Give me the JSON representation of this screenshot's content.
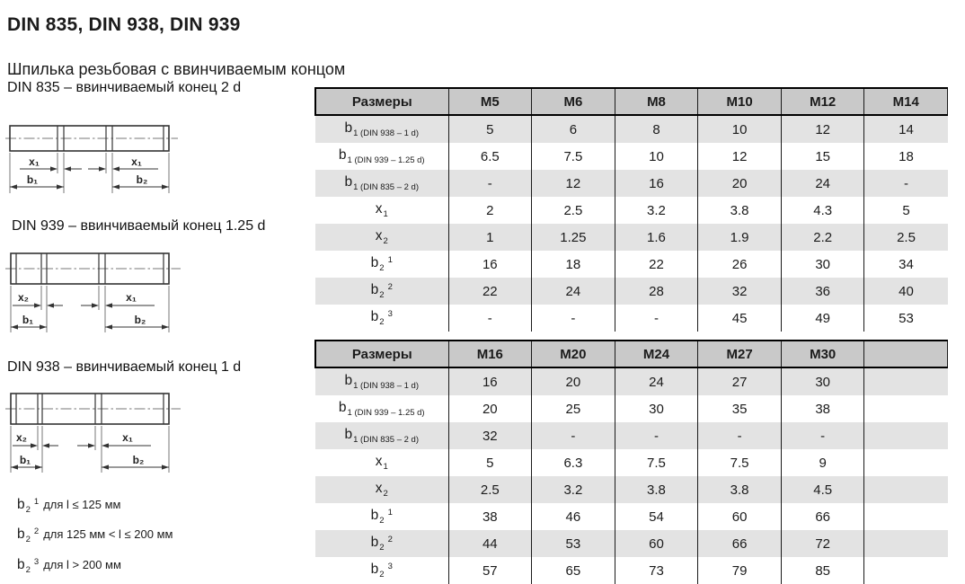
{
  "page": {
    "title": "DIN 835, DIN 938, DIN 939",
    "subtitle": "Шпилька резьбовая с ввинчиваемым концом"
  },
  "diagrams": [
    {
      "caption": "DIN 835 – ввинчиваемый конец 2 d",
      "dim_left": "x₁",
      "dim_right": "x₁",
      "dim_b_left": "b₁",
      "dim_b_right": "b₂"
    },
    {
      "caption": "DIN 939 – ввинчиваемый конец 1.25 d",
      "dim_left": "x₂",
      "dim_right": "x₁",
      "dim_b_left": "b₁",
      "dim_b_right": "b₂"
    },
    {
      "caption": "DIN 938 – ввинчиваемый конец 1 d",
      "dim_left": "x₂",
      "dim_right": "x₁",
      "dim_b_left": "b₁",
      "dim_b_right": "b₂"
    }
  ],
  "footnotes": [
    {
      "base": "b",
      "sub": "2",
      "sup": "1",
      "text": "для l ≤ 125 мм"
    },
    {
      "base": "b",
      "sub": "2",
      "sup": "2",
      "text": "для 125 мм < l ≤ 200 мм"
    },
    {
      "base": "b",
      "sub": "2",
      "sup": "3",
      "text": "для l > 200 мм"
    }
  ],
  "tables": [
    {
      "header_label": "Размеры",
      "columns": [
        "M5",
        "M6",
        "M8",
        "M10",
        "M12",
        "M14"
      ],
      "rows": [
        {
          "label": {
            "base": "b",
            "sub": "1 (DIN 938 – 1 d)"
          },
          "values": [
            "5",
            "6",
            "8",
            "10",
            "12",
            "14"
          ]
        },
        {
          "label": {
            "base": "b",
            "sub": "1 (DIN 939 – 1.25 d)"
          },
          "values": [
            "6.5",
            "7.5",
            "10",
            "12",
            "15",
            "18"
          ]
        },
        {
          "label": {
            "base": "b",
            "sub": "1 (DIN 835 – 2 d)"
          },
          "values": [
            "-",
            "12",
            "16",
            "20",
            "24",
            "-"
          ]
        },
        {
          "label": {
            "base": "x",
            "sub": "1"
          },
          "values": [
            "2",
            "2.5",
            "3.2",
            "3.8",
            "4.3",
            "5"
          ]
        },
        {
          "label": {
            "base": "x",
            "sub": "2"
          },
          "values": [
            "1",
            "1.25",
            "1.6",
            "1.9",
            "2.2",
            "2.5"
          ]
        },
        {
          "label": {
            "base": "b",
            "sub": "2",
            "sup": "1"
          },
          "values": [
            "16",
            "18",
            "22",
            "26",
            "30",
            "34"
          ]
        },
        {
          "label": {
            "base": "b",
            "sub": "2",
            "sup": "2"
          },
          "values": [
            "22",
            "24",
            "28",
            "32",
            "36",
            "40"
          ]
        },
        {
          "label": {
            "base": "b",
            "sub": "2",
            "sup": "3"
          },
          "values": [
            "-",
            "-",
            "-",
            "45",
            "49",
            "53"
          ]
        }
      ]
    },
    {
      "header_label": "Размеры",
      "columns": [
        "M16",
        "M20",
        "M24",
        "M27",
        "M30",
        ""
      ],
      "rows": [
        {
          "label": {
            "base": "b",
            "sub": "1 (DIN 938 – 1 d)"
          },
          "values": [
            "16",
            "20",
            "24",
            "27",
            "30",
            ""
          ]
        },
        {
          "label": {
            "base": "b",
            "sub": "1 (DIN 939 – 1.25 d)"
          },
          "values": [
            "20",
            "25",
            "30",
            "35",
            "38",
            ""
          ]
        },
        {
          "label": {
            "base": "b",
            "sub": "1 (DIN 835 – 2 d)"
          },
          "values": [
            "32",
            "-",
            "-",
            "-",
            "-",
            ""
          ]
        },
        {
          "label": {
            "base": "x",
            "sub": "1"
          },
          "values": [
            "5",
            "6.3",
            "7.5",
            "7.5",
            "9",
            ""
          ]
        },
        {
          "label": {
            "base": "x",
            "sub": "2"
          },
          "values": [
            "2.5",
            "3.2",
            "3.8",
            "3.8",
            "4.5",
            ""
          ]
        },
        {
          "label": {
            "base": "b",
            "sub": "2",
            "sup": "1"
          },
          "values": [
            "38",
            "46",
            "54",
            "60",
            "66",
            ""
          ]
        },
        {
          "label": {
            "base": "b",
            "sub": "2",
            "sup": "2"
          },
          "values": [
            "44",
            "53",
            "60",
            "66",
            "72",
            ""
          ]
        },
        {
          "label": {
            "base": "b",
            "sub": "2",
            "sup": "3"
          },
          "values": [
            "57",
            "65",
            "73",
            "79",
            "85",
            ""
          ]
        }
      ]
    }
  ],
  "colors": {
    "header_bg": "#c9c9c9",
    "row_alt_bg": "#e3e3e3",
    "row_bg": "#ffffff",
    "border": "#1a1a1a",
    "text": "#1b1b1b"
  }
}
